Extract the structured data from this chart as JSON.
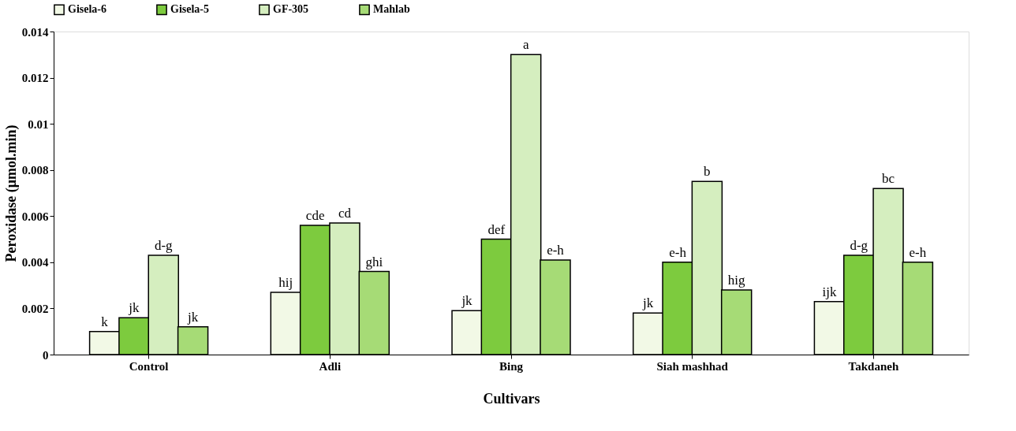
{
  "chart_data": {
    "type": "bar",
    "xlabel": "Cultivars",
    "ylabel": "Peroxidase (μmol.min)",
    "categories": [
      "Control",
      "Adli",
      "Bing",
      "Siah mashhad",
      "Takdaneh"
    ],
    "series": [
      {
        "name": "Gisela-6",
        "color": "#f2f9e6",
        "values": [
          0.001,
          0.0027,
          0.0019,
          0.0018,
          0.0023
        ],
        "value_labels": [
          "k",
          "hij",
          "jk",
          "jk",
          "ijk"
        ]
      },
      {
        "name": "Gisela-5",
        "color": "#7dcb3e",
        "values": [
          0.0016,
          0.0056,
          0.005,
          0.004,
          0.0043
        ],
        "value_labels": [
          "jk",
          "cde",
          "def",
          "e-h",
          "d-g"
        ]
      },
      {
        "name": "GF-305",
        "color": "#d5eebf",
        "values": [
          0.0043,
          0.0057,
          0.013,
          0.0075,
          0.0072
        ],
        "value_labels": [
          "d-g",
          "cd",
          "a",
          "b",
          "bc"
        ]
      },
      {
        "name": "Mahlab",
        "color": "#a6db76",
        "values": [
          0.0012,
          0.0036,
          0.0041,
          0.0028,
          0.004
        ],
        "value_labels": [
          "jk",
          "ghi",
          "e-h",
          "hig",
          "e-h"
        ]
      }
    ],
    "ylim": [
      0,
      0.014
    ],
    "yticks": [
      0,
      0.002,
      0.004,
      0.006,
      0.008,
      0.01,
      0.012,
      0.014
    ],
    "grid": false,
    "legend": "top"
  }
}
